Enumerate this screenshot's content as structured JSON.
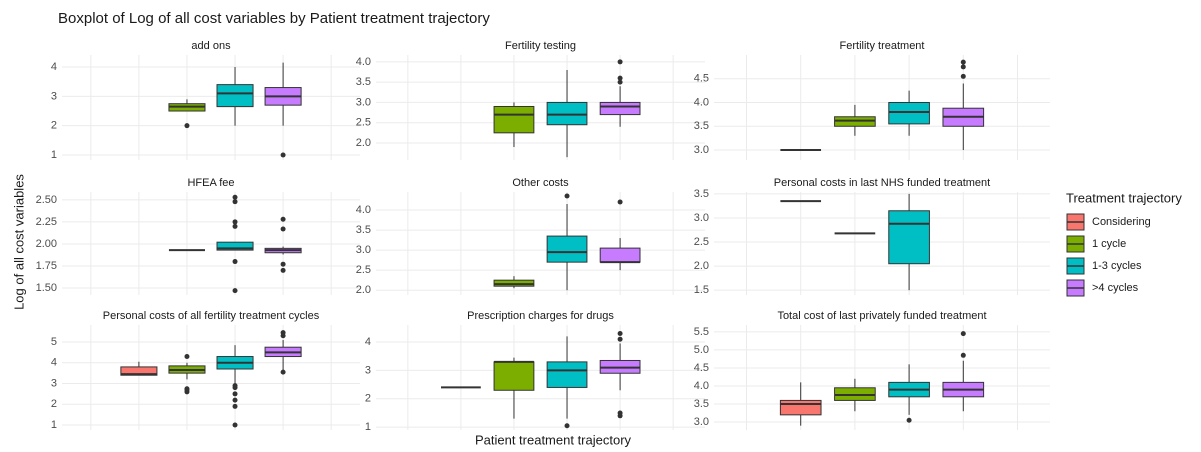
{
  "chart_data": {
    "type": "boxplot",
    "title": "Boxplot of Log of all cost variables by Patient treatment trajectory",
    "xlabel": "Patient treatment trajectory",
    "ylabel": "Log of all cost variables",
    "legend_title": "Treatment trajectory",
    "categories": [
      "Considering",
      "1 cycle",
      "1-3 cycles",
      ">4 cycles"
    ],
    "colors": [
      "#F8766D",
      "#7CAE00",
      "#00BFC4",
      "#C77CFF"
    ],
    "facets": [
      {
        "title": "add ons",
        "ylim": [
          0.83,
          4.41
        ],
        "yticks": [
          1,
          2,
          3,
          4
        ],
        "boxes": [
          null,
          {
            "min": 2.5,
            "q1": 2.5,
            "median": 2.65,
            "q3": 2.75,
            "max": 2.9,
            "outliers": [
              2.0
            ]
          },
          {
            "min": 2.0,
            "q1": 2.65,
            "median": 3.1,
            "q3": 3.4,
            "max": 4.0,
            "outliers": []
          },
          {
            "min": 2.0,
            "q1": 2.7,
            "median": 3.0,
            "q3": 3.3,
            "max": 4.15,
            "outliers": [
              1.0
            ]
          }
        ]
      },
      {
        "title": "Fertility testing",
        "ylim": [
          1.58,
          4.17
        ],
        "yticks": [
          {
            "value": 2,
            "label": "2.0"
          },
          2.5,
          {
            "value": 3,
            "label": "3.0"
          },
          3.5,
          {
            "value": 4,
            "label": "4.0"
          }
        ],
        "boxes": [
          null,
          {
            "min": 1.9,
            "q1": 2.25,
            "median": 2.7,
            "q3": 2.9,
            "max": 3.0,
            "outliers": []
          },
          {
            "min": 1.65,
            "q1": 2.45,
            "median": 2.7,
            "q3": 3.0,
            "max": 3.8,
            "outliers": []
          },
          {
            "min": 2.4,
            "q1": 2.7,
            "median": 2.9,
            "q3": 3.0,
            "max": 3.4,
            "outliers": [
              3.5,
              3.6,
              4.0
            ]
          }
        ]
      },
      {
        "title": "Fertility treatment",
        "ylim": [
          2.79,
          5.0
        ],
        "yticks": [
          {
            "value": 3,
            "label": "3.0"
          },
          3.5,
          {
            "value": 4,
            "label": "4.0"
          },
          4.5
        ],
        "boxes": [
          {
            "min": 3.0,
            "q1": 3.0,
            "median": 3.0,
            "q3": 3.0,
            "max": 3.0,
            "outliers": []
          },
          {
            "min": 3.3,
            "q1": 3.5,
            "median": 3.62,
            "q3": 3.7,
            "max": 3.95,
            "outliers": []
          },
          {
            "min": 3.3,
            "q1": 3.55,
            "median": 3.8,
            "q3": 4.0,
            "max": 4.25,
            "outliers": []
          },
          {
            "min": 3.0,
            "q1": 3.5,
            "median": 3.7,
            "q3": 3.88,
            "max": 4.4,
            "outliers": [
              4.55,
              4.75,
              4.85
            ]
          }
        ]
      },
      {
        "title": "HFEA fee",
        "ylim": [
          1.42,
          2.59
        ],
        "yticks": [
          {
            "value": 1.5,
            "label": "1.50"
          },
          {
            "value": 1.75,
            "label": "1.75"
          },
          {
            "value": 2,
            "label": "2.00"
          },
          {
            "value": 2.25,
            "label": "2.25"
          },
          {
            "value": 2.5,
            "label": "2.50"
          }
        ],
        "boxes": [
          null,
          {
            "min": 1.93,
            "q1": 1.93,
            "median": 1.93,
            "q3": 1.93,
            "max": 1.93,
            "outliers": []
          },
          {
            "min": 1.93,
            "q1": 1.93,
            "median": 1.95,
            "q3": 2.02,
            "max": 2.02,
            "outliers": [
              1.47,
              1.8,
              2.2,
              2.25,
              2.48,
              2.53
            ]
          },
          {
            "min": 1.88,
            "q1": 1.9,
            "median": 1.93,
            "q3": 1.95,
            "max": 1.97,
            "outliers": [
              1.7,
              1.77,
              2.17,
              2.28
            ]
          }
        ]
      },
      {
        "title": "Other costs",
        "ylim": [
          1.88,
          4.45
        ],
        "yticks": [
          {
            "value": 2,
            "label": "2.0"
          },
          2.5,
          {
            "value": 3,
            "label": "3.0"
          },
          3.5,
          {
            "value": 4,
            "label": "4.0"
          }
        ],
        "boxes": [
          null,
          {
            "min": 2.05,
            "q1": 2.1,
            "median": 2.15,
            "q3": 2.25,
            "max": 2.35,
            "outliers": []
          },
          {
            "min": 2.0,
            "q1": 2.7,
            "median": 2.95,
            "q3": 3.35,
            "max": 4.15,
            "outliers": [
              4.35
            ]
          },
          {
            "min": 2.5,
            "q1": 2.7,
            "median": 2.7,
            "q3": 3.05,
            "max": 3.3,
            "outliers": [
              4.2
            ]
          }
        ]
      },
      {
        "title": "Personal costs in last NHS funded treatment",
        "ylim": [
          1.4,
          3.54
        ],
        "yticks": [
          1.5,
          {
            "value": 2,
            "label": "2.0"
          },
          2.5,
          {
            "value": 3,
            "label": "3.0"
          },
          3.5
        ],
        "boxes": [
          {
            "min": 3.35,
            "q1": 3.35,
            "median": 3.35,
            "q3": 3.35,
            "max": 3.35,
            "outliers": []
          },
          {
            "min": 2.68,
            "q1": 2.68,
            "median": 2.68,
            "q3": 2.68,
            "max": 2.68,
            "outliers": []
          },
          {
            "min": 1.5,
            "q1": 2.05,
            "median": 2.88,
            "q3": 3.15,
            "max": 3.5,
            "outliers": []
          },
          null
        ]
      },
      {
        "title": "Personal costs of all fertility treatment cycles",
        "ylim": [
          0.76,
          5.82
        ],
        "yticks": [
          1,
          2,
          3,
          4,
          5
        ],
        "boxes": [
          {
            "min": 3.4,
            "q1": 3.4,
            "median": 3.45,
            "q3": 3.8,
            "max": 4.05,
            "outliers": []
          },
          {
            "min": 3.2,
            "q1": 3.5,
            "median": 3.65,
            "q3": 3.85,
            "max": 4.0,
            "outliers": [
              2.6,
              2.7,
              2.75,
              4.3
            ]
          },
          {
            "min": 3.0,
            "q1": 3.7,
            "median": 4.0,
            "q3": 4.3,
            "max": 4.85,
            "outliers": [
              1.0,
              1.9,
              2.2,
              2.5,
              2.8,
              2.9
            ]
          },
          {
            "min": 3.6,
            "q1": 4.3,
            "median": 4.5,
            "q3": 4.75,
            "max": 5.1,
            "outliers": [
              3.55,
              5.3,
              5.45
            ]
          }
        ]
      },
      {
        "title": "Prescription charges for drugs",
        "ylim": [
          0.9,
          4.6
        ],
        "yticks": [
          1,
          2,
          3,
          4
        ],
        "boxes": [
          {
            "min": 2.4,
            "q1": 2.4,
            "median": 2.4,
            "q3": 2.4,
            "max": 2.4,
            "outliers": []
          },
          {
            "min": 1.3,
            "q1": 2.3,
            "median": 3.3,
            "q3": 3.3,
            "max": 3.45,
            "outliers": []
          },
          {
            "min": 1.3,
            "q1": 2.4,
            "median": 3.0,
            "q3": 3.3,
            "max": 4.2,
            "outliers": [
              1.05
            ]
          },
          {
            "min": 2.3,
            "q1": 2.9,
            "median": 3.1,
            "q3": 3.35,
            "max": 3.95,
            "outliers": [
              1.4,
              1.5,
              4.1,
              4.3
            ]
          }
        ]
      },
      {
        "title": "Total cost of last privately funded treatment",
        "ylim": [
          2.78,
          5.69
        ],
        "yticks": [
          {
            "value": 3,
            "label": "3.0"
          },
          3.5,
          {
            "value": 4,
            "label": "4.0"
          },
          4.5,
          {
            "value": 5,
            "label": "5.0"
          },
          5.5
        ],
        "boxes": [
          {
            "min": 2.9,
            "q1": 3.2,
            "median": 3.5,
            "q3": 3.6,
            "max": 4.1,
            "outliers": []
          },
          {
            "min": 3.3,
            "q1": 3.6,
            "median": 3.75,
            "q3": 3.95,
            "max": 4.2,
            "outliers": []
          },
          {
            "min": 3.2,
            "q1": 3.7,
            "median": 3.9,
            "q3": 4.1,
            "max": 4.6,
            "outliers": [
              3.05
            ]
          },
          {
            "min": 3.3,
            "q1": 3.7,
            "median": 3.9,
            "q3": 4.1,
            "max": 4.7,
            "outliers": [
              4.85,
              5.45
            ]
          }
        ]
      }
    ]
  }
}
